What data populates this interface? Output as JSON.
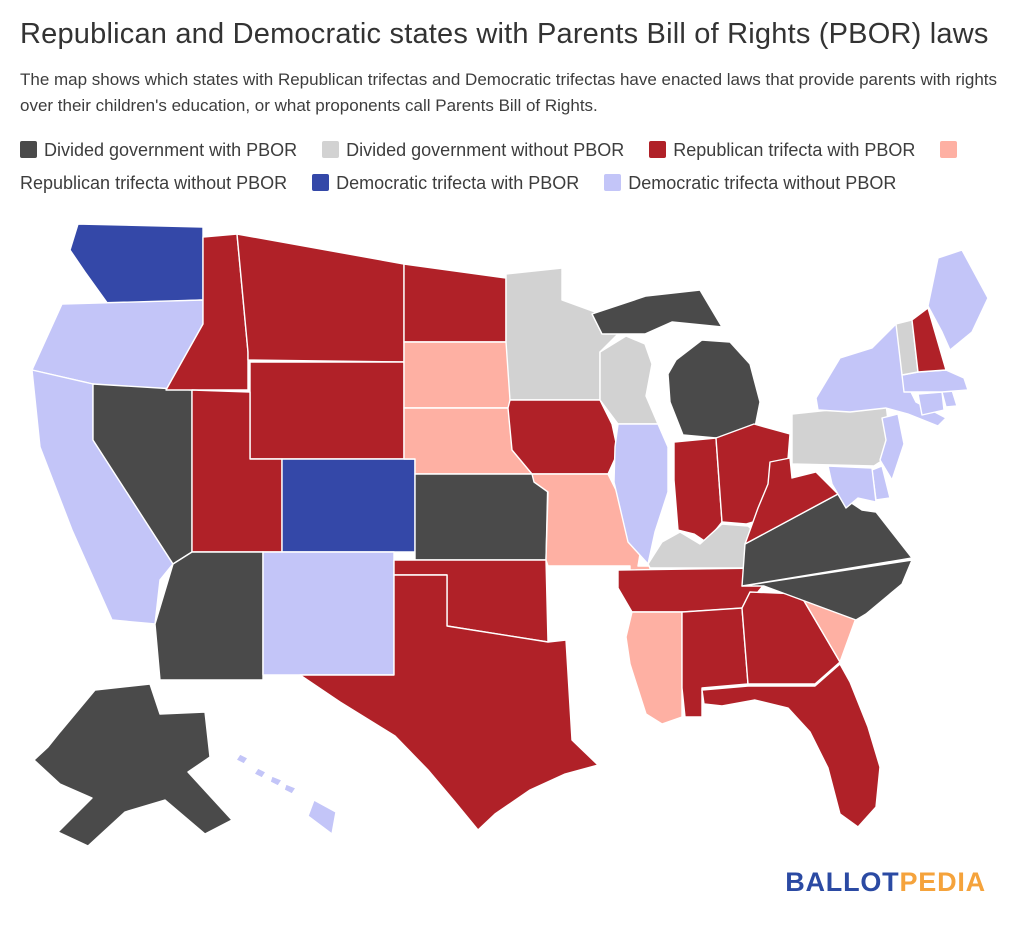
{
  "header": {
    "title": "Republican and Democratic states with Parents Bill of Rights (PBOR) laws",
    "subtitle": "The map shows which states with Republican trifectas and Democratic trifectas have enacted laws that provide parents with rights over their children's education, or what proponents call Parents Bill of Rights."
  },
  "categories": [
    {
      "key": "divided_with_pbor",
      "label": "Divided government with PBOR",
      "color": "#4a4a4a"
    },
    {
      "key": "divided_without_pbor",
      "label": "Divided government without PBOR",
      "color": "#d2d2d2"
    },
    {
      "key": "rep_with_pbor",
      "label": "Republican trifecta with PBOR",
      "color": "#b02128"
    },
    {
      "key": "rep_without_pbor",
      "label": "Republican trifecta without PBOR",
      "color": "#feb0a3"
    },
    {
      "key": "dem_with_pbor",
      "label": "Democratic trifecta with PBOR",
      "color": "#3448a8"
    },
    {
      "key": "dem_without_pbor",
      "label": "Democratic trifecta without PBOR",
      "color": "#c3c5f8"
    }
  ],
  "chart_data": {
    "type": "choropleth-map",
    "title": "Republican and Democratic states with Parents Bill of Rights (PBOR) laws",
    "legend_position": "top",
    "states": [
      {
        "code": "WA",
        "name": "Washington",
        "category": "dem_with_pbor"
      },
      {
        "code": "OR",
        "name": "Oregon",
        "category": "dem_without_pbor"
      },
      {
        "code": "CA",
        "name": "California",
        "category": "dem_without_pbor"
      },
      {
        "code": "NV",
        "name": "Nevada",
        "category": "divided_with_pbor"
      },
      {
        "code": "ID",
        "name": "Idaho",
        "category": "rep_with_pbor"
      },
      {
        "code": "MT",
        "name": "Montana",
        "category": "rep_with_pbor"
      },
      {
        "code": "WY",
        "name": "Wyoming",
        "category": "rep_with_pbor"
      },
      {
        "code": "UT",
        "name": "Utah",
        "category": "rep_with_pbor"
      },
      {
        "code": "CO",
        "name": "Colorado",
        "category": "dem_with_pbor"
      },
      {
        "code": "AZ",
        "name": "Arizona",
        "category": "divided_with_pbor"
      },
      {
        "code": "NM",
        "name": "New Mexico",
        "category": "dem_without_pbor"
      },
      {
        "code": "AK",
        "name": "Alaska",
        "category": "divided_with_pbor"
      },
      {
        "code": "HI",
        "name": "Hawaii",
        "category": "dem_without_pbor"
      },
      {
        "code": "ND",
        "name": "North Dakota",
        "category": "rep_with_pbor"
      },
      {
        "code": "SD",
        "name": "South Dakota",
        "category": "rep_without_pbor"
      },
      {
        "code": "NE",
        "name": "Nebraska",
        "category": "rep_without_pbor"
      },
      {
        "code": "KS",
        "name": "Kansas",
        "category": "divided_with_pbor"
      },
      {
        "code": "OK",
        "name": "Oklahoma",
        "category": "rep_with_pbor"
      },
      {
        "code": "TX",
        "name": "Texas",
        "category": "rep_with_pbor"
      },
      {
        "code": "MN",
        "name": "Minnesota",
        "category": "divided_without_pbor"
      },
      {
        "code": "IA",
        "name": "Iowa",
        "category": "rep_with_pbor"
      },
      {
        "code": "MO",
        "name": "Missouri",
        "category": "rep_without_pbor"
      },
      {
        "code": "AR",
        "name": "Arkansas",
        "category": "rep_without_pbor"
      },
      {
        "code": "LA",
        "name": "Louisiana",
        "category": "rep_with_pbor"
      },
      {
        "code": "WI",
        "name": "Wisconsin",
        "category": "divided_without_pbor"
      },
      {
        "code": "IL",
        "name": "Illinois",
        "category": "dem_without_pbor"
      },
      {
        "code": "MI",
        "name": "Michigan",
        "category": "divided_with_pbor"
      },
      {
        "code": "IN",
        "name": "Indiana",
        "category": "rep_with_pbor"
      },
      {
        "code": "OH",
        "name": "Ohio",
        "category": "rep_with_pbor"
      },
      {
        "code": "KY",
        "name": "Kentucky",
        "category": "divided_without_pbor"
      },
      {
        "code": "TN",
        "name": "Tennessee",
        "category": "rep_with_pbor"
      },
      {
        "code": "MS",
        "name": "Mississippi",
        "category": "rep_without_pbor"
      },
      {
        "code": "AL",
        "name": "Alabama",
        "category": "rep_with_pbor"
      },
      {
        "code": "GA",
        "name": "Georgia",
        "category": "rep_with_pbor"
      },
      {
        "code": "FL",
        "name": "Florida",
        "category": "rep_with_pbor"
      },
      {
        "code": "SC",
        "name": "South Carolina",
        "category": "rep_without_pbor"
      },
      {
        "code": "NC",
        "name": "North Carolina",
        "category": "divided_with_pbor"
      },
      {
        "code": "VA",
        "name": "Virginia",
        "category": "divided_with_pbor"
      },
      {
        "code": "WV",
        "name": "West Virginia",
        "category": "rep_with_pbor"
      },
      {
        "code": "PA",
        "name": "Pennsylvania",
        "category": "divided_without_pbor"
      },
      {
        "code": "NY",
        "name": "New York",
        "category": "dem_without_pbor"
      },
      {
        "code": "NJ",
        "name": "New Jersey",
        "category": "dem_without_pbor"
      },
      {
        "code": "DE",
        "name": "Delaware",
        "category": "dem_without_pbor"
      },
      {
        "code": "MD",
        "name": "Maryland",
        "category": "dem_without_pbor"
      },
      {
        "code": "CT",
        "name": "Connecticut",
        "category": "dem_without_pbor"
      },
      {
        "code": "RI",
        "name": "Rhode Island",
        "category": "dem_without_pbor"
      },
      {
        "code": "MA",
        "name": "Massachusetts",
        "category": "dem_without_pbor"
      },
      {
        "code": "VT",
        "name": "Vermont",
        "category": "divided_without_pbor"
      },
      {
        "code": "NH",
        "name": "New Hampshire",
        "category": "rep_with_pbor"
      },
      {
        "code": "ME",
        "name": "Maine",
        "category": "dem_without_pbor"
      }
    ]
  },
  "footer": {
    "logo_primary": "BALLOT",
    "logo_secondary": "PEDIA",
    "logo_primary_color": "#2b4aa3",
    "logo_secondary_color": "#f5a33c"
  }
}
